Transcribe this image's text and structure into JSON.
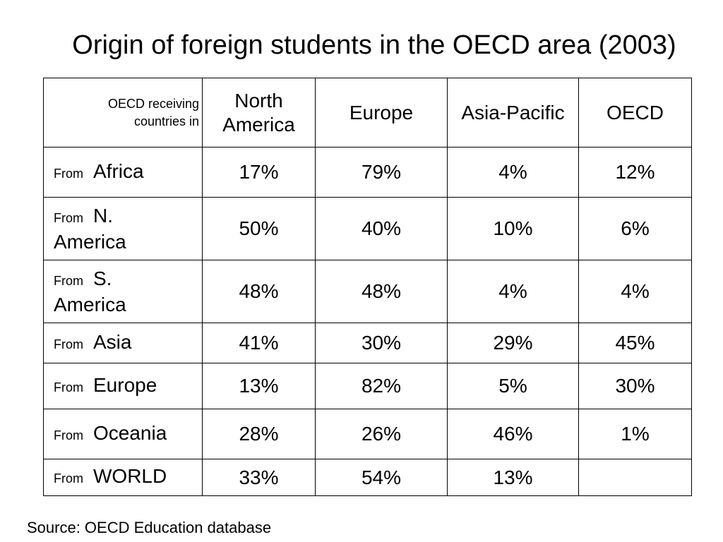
{
  "title": "Origin of foreign students in the OECD area (2003)",
  "table": {
    "corner_label": "OECD receiving countries in",
    "columns": [
      "North America",
      "Europe",
      "Asia-Pacific",
      "OECD"
    ],
    "row_prefix": "From",
    "rows": [
      {
        "origin": "Africa",
        "values": [
          "17%",
          "79%",
          "4%",
          "12%"
        ]
      },
      {
        "origin": "N. America",
        "values": [
          "50%",
          "40%",
          "10%",
          "6%"
        ]
      },
      {
        "origin": "S. America",
        "values": [
          "48%",
          "48%",
          "4%",
          "4%"
        ]
      },
      {
        "origin": "Asia",
        "values": [
          "41%",
          "30%",
          "29%",
          "45%"
        ]
      },
      {
        "origin": "Europe",
        "values": [
          "13%",
          "82%",
          "5%",
          "30%"
        ]
      },
      {
        "origin": "Oceania",
        "values": [
          "28%",
          "26%",
          "46%",
          "1%"
        ]
      },
      {
        "origin": "WORLD",
        "values": [
          "33%",
          "54%",
          "13%",
          ""
        ]
      }
    ]
  },
  "source": "Source: OECD Education database"
}
